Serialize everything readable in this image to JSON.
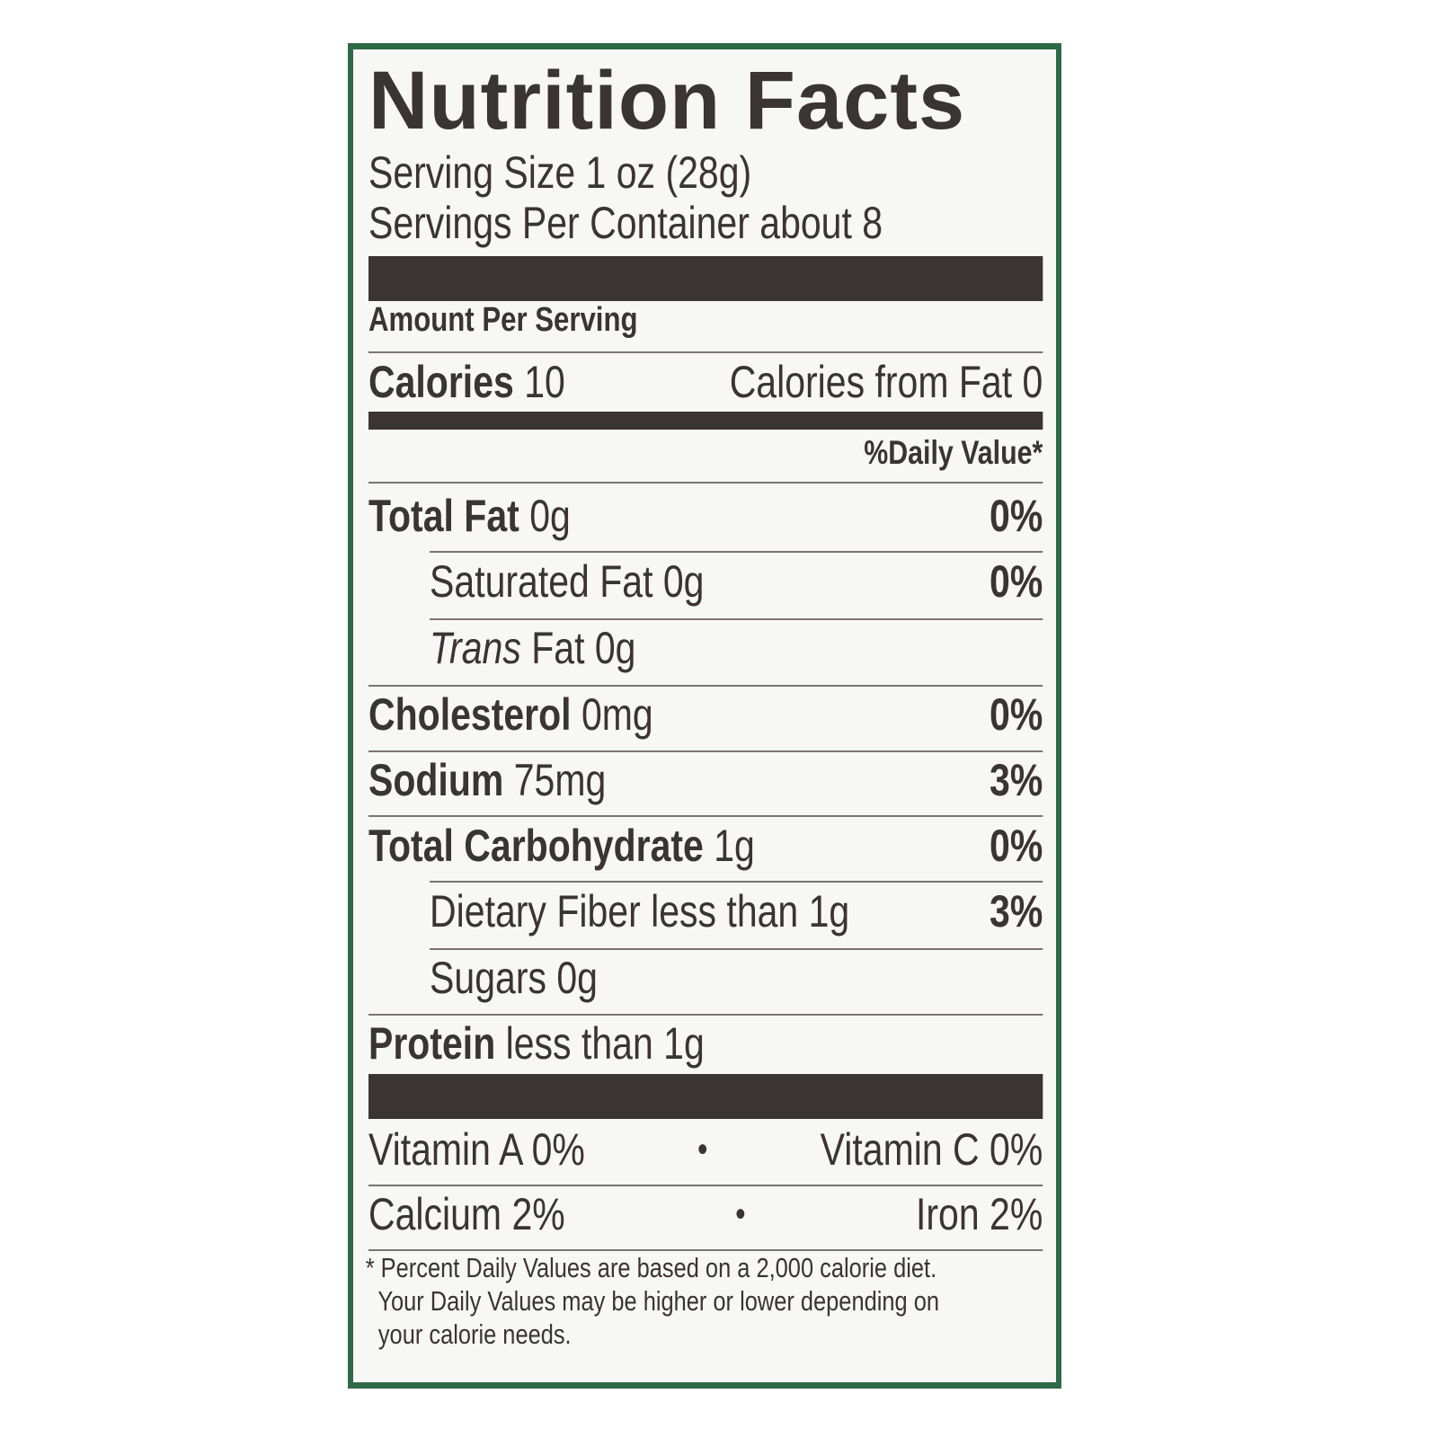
{
  "title": "Nutrition Facts",
  "serving_size": "Serving Size 1 oz  (28g)",
  "servings_per_container": "Servings Per Container about 8",
  "amount_per_serving": "Amount Per Serving",
  "calories": {
    "label": "Calories",
    "value": "10",
    "from_fat": "Calories from Fat 0"
  },
  "daily_value_header": "%Daily Value*",
  "nutrients": [
    {
      "label": "Total Fat",
      "amount": "0g",
      "dv": "0%"
    },
    {
      "label": "Saturated Fat 0g",
      "dv": "0%"
    },
    {
      "label_italic": "Trans",
      "label": " Fat 0g"
    },
    {
      "label": "Cholesterol",
      "amount": "0mg",
      "dv": "0%"
    },
    {
      "label": "Sodium",
      "amount": "75mg",
      "dv": "3%"
    },
    {
      "label": "Total Carbohydrate",
      "amount": "1g",
      "dv": "0%"
    },
    {
      "label": "Dietary Fiber less than 1g",
      "dv": "3%"
    },
    {
      "label": "Sugars 0g"
    },
    {
      "label": "Protein",
      "amount": "less than 1g"
    }
  ],
  "vitamins": [
    {
      "left": "Vitamin A 0%",
      "sep": "•",
      "right": "Vitamin C 0%"
    },
    {
      "left": "Calcium 2%",
      "sep": "•",
      "right": "Iron 2%"
    }
  ],
  "footnote": [
    "* Percent Daily Values are based on a 2,000 calorie diet.",
    "  Your Daily Values may be higher or lower depending on",
    "  your calorie needs."
  ],
  "colors": {
    "ink": "#3a3432",
    "package_green": "#2f6a46"
  }
}
